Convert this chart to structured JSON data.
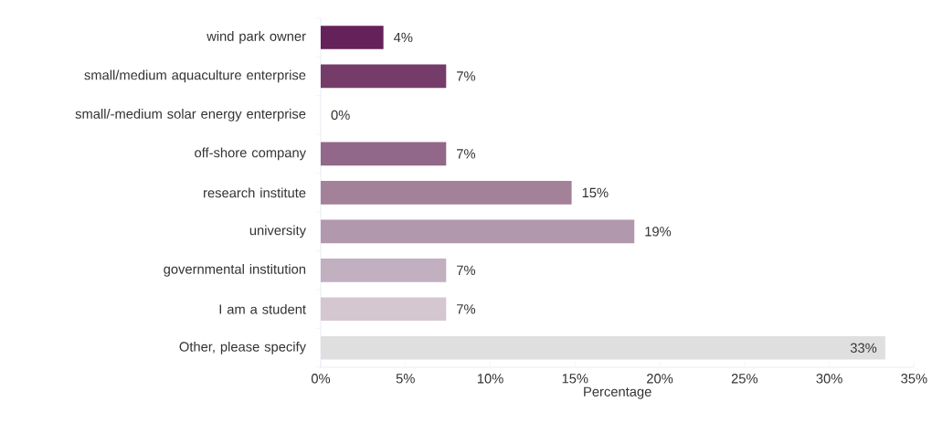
{
  "chart_data": {
    "type": "bar",
    "orientation": "horizontal",
    "xlabel": "Percentage",
    "categories": [
      "wind park owner",
      "small/medium aquaculture enterprise",
      "small/-medium solar energy enterprise",
      "off-shore company",
      "research institute",
      "university",
      "governmental institution",
      "I am a student",
      "Other, please specify"
    ],
    "values": [
      3.7,
      7.4,
      0,
      7.4,
      14.8,
      18.5,
      7.4,
      7.4,
      33.3
    ],
    "value_labels": [
      "4%",
      "7%",
      "0%",
      "7%",
      "15%",
      "19%",
      "7%",
      "7%",
      "33%"
    ],
    "colors": [
      "#65215a",
      "#753c69",
      "#85527a",
      "#91688a",
      "#a38199",
      "#b298ad",
      "#c2afbf",
      "#d4c7d0",
      "#dfdfdf"
    ],
    "xlim": [
      0,
      35
    ],
    "xticks": [
      {
        "value": 0,
        "label": "0%"
      },
      {
        "value": 5,
        "label": "5%"
      },
      {
        "value": 10,
        "label": "10%"
      },
      {
        "value": 15,
        "label": "15%"
      },
      {
        "value": 20,
        "label": "20%"
      },
      {
        "value": 25,
        "label": "25%"
      },
      {
        "value": 30,
        "label": "30%"
      },
      {
        "value": 35,
        "label": "35%"
      }
    ],
    "grid": false
  }
}
